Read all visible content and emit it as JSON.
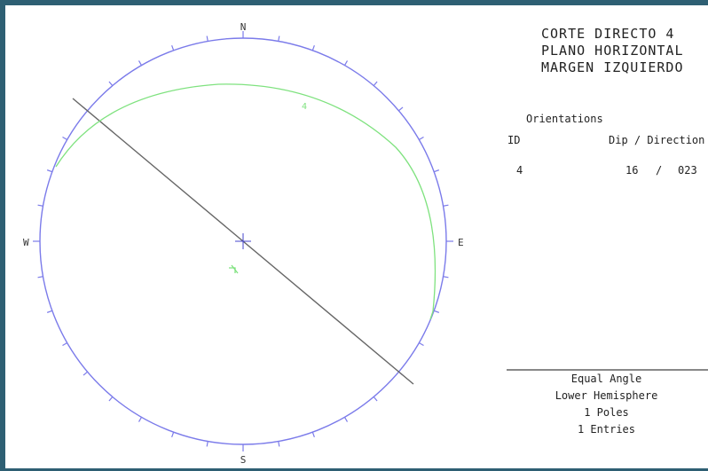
{
  "title": {
    "line1": "CORTE DIRECTO 4",
    "line2": "PLANO HORIZONTAL",
    "line3": "MARGEN IZQUIERDO"
  },
  "orientations": {
    "heading": "Orientations",
    "col_id": "ID",
    "col_dip_dir": "Dip / Direction",
    "entries": [
      {
        "id": "4",
        "dip": "16",
        "sep": "/",
        "direction": "023"
      }
    ]
  },
  "compass": {
    "north": "N",
    "east": "E",
    "south": "S",
    "west": "W"
  },
  "plot_label": "4",
  "footer": {
    "projection": "Equal Angle",
    "hemisphere": "Lower Hemisphere",
    "poles": "1 Poles",
    "entries": "1 Entries"
  },
  "colors": {
    "net_circle": "#7b7bea",
    "great_circle": "#7fe27f",
    "line": "#666666",
    "frame": "#2e5f73"
  }
}
